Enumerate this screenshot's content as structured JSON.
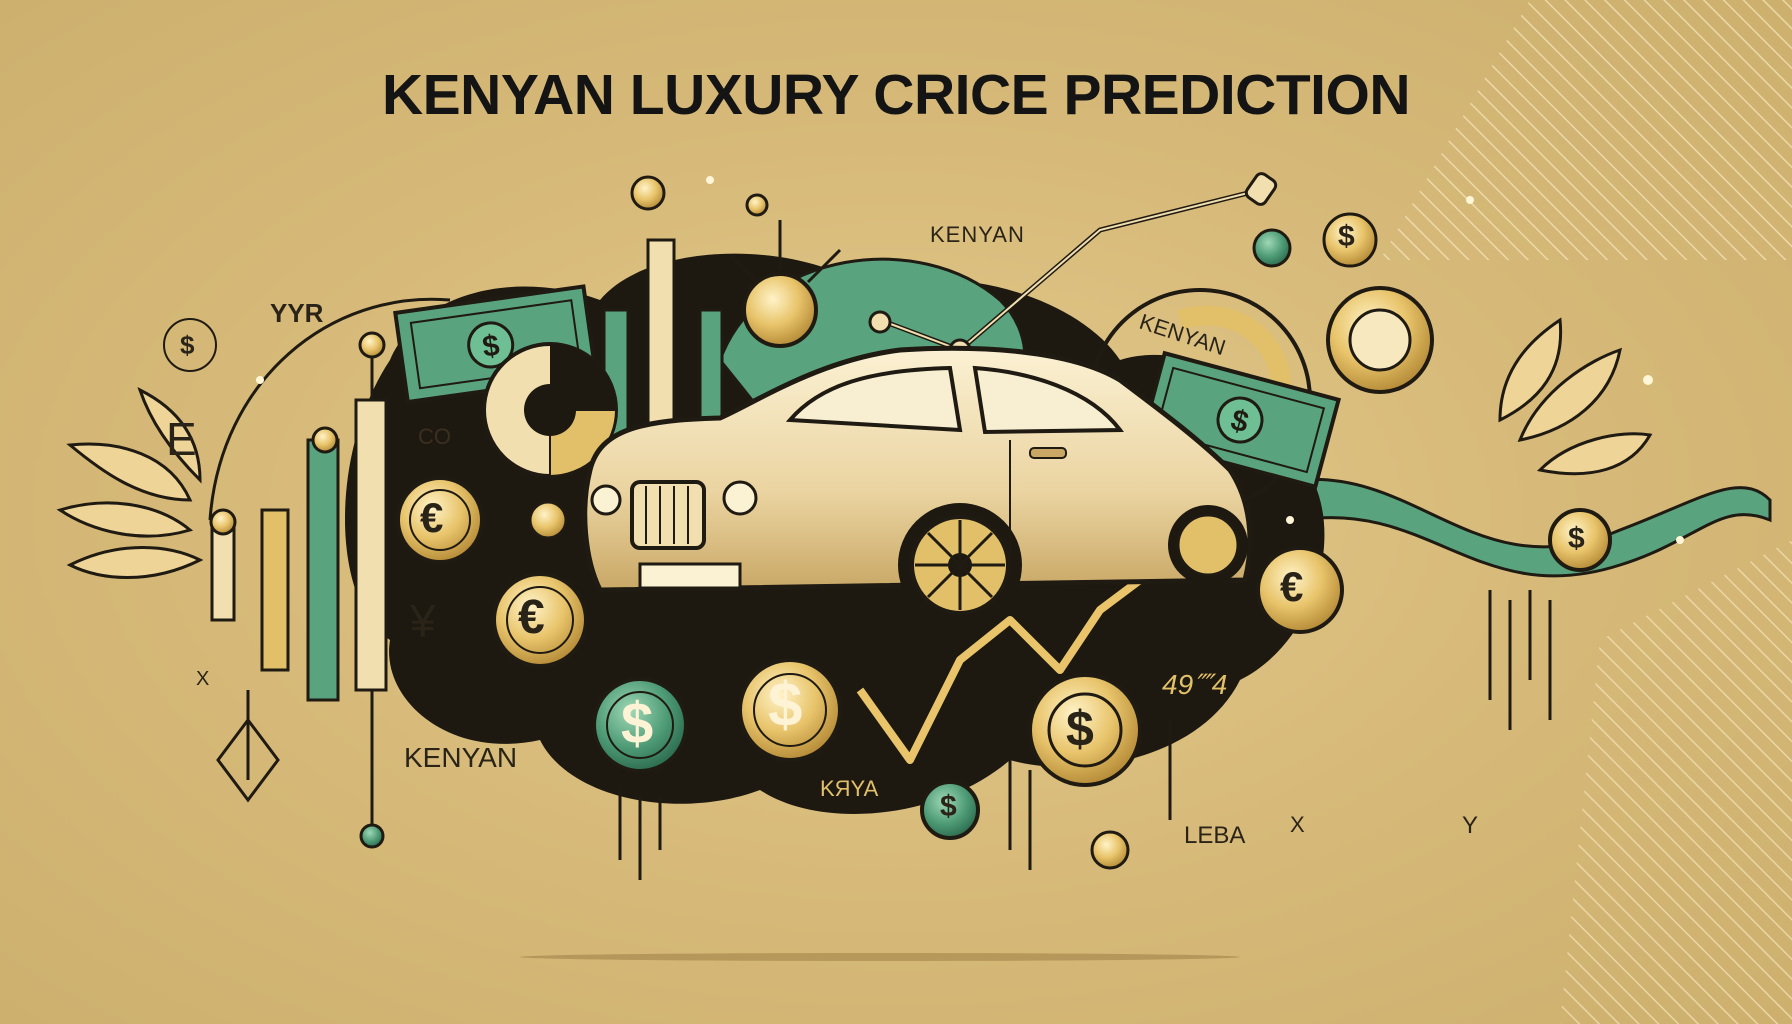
{
  "title": "KENYAN LUXURY CRICE PREDICTION",
  "labels": {
    "kenyan_top": "KENYAN",
    "kenyan_right": "KENYAN",
    "kenyan_left": "KENYAN",
    "yyr": "YYR",
    "co": "CO",
    "leba": "LEBA",
    "kya": "KЯYA",
    "num": "49⁗4",
    "x_left": "X",
    "x_right": "X",
    "y_right": "Y",
    "e_left": "E",
    "yen": "¥",
    "euro": "€",
    "dollar": "$"
  },
  "colors": {
    "background": "#d8bc7e",
    "gold": "#e2c06a",
    "cream": "#f7e8bf",
    "green": "#5aa37f",
    "dark": "#1f1a12"
  }
}
